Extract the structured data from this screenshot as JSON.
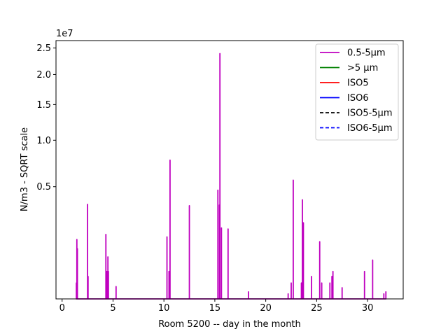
{
  "chart_data": {
    "type": "line",
    "title": "",
    "xlabel": "Room 5200 -- day in the month",
    "ylabel": "N/m3 - SQRT scale",
    "y_scale": "sqrt",
    "y_offset_label": "1e7",
    "xlim": [
      -0.6,
      33.5
    ],
    "ylim": [
      0,
      26500000
    ],
    "x_ticks": [
      0,
      5,
      10,
      15,
      20,
      25,
      30
    ],
    "x_tick_labels": [
      "0",
      "5",
      "10",
      "15",
      "20",
      "25",
      "30"
    ],
    "y_ticks": [
      5000000,
      10000000,
      15000000,
      20000000,
      25000000
    ],
    "y_tick_labels": [
      "0.5",
      "1.0",
      "1.5",
      "2.0",
      "2.5"
    ],
    "legend_position": "top-right",
    "grid": false,
    "series": [
      {
        "name": "0.5-5μm",
        "color": "#bf00bf",
        "dash": "solid",
        "spikes": [
          [
            1.4,
            100000
          ],
          [
            1.45,
            1400000
          ],
          [
            1.5,
            1000000
          ],
          [
            2.5,
            3550000
          ],
          [
            2.55,
            200000
          ],
          [
            4.3,
            1650000
          ],
          [
            4.4,
            300000
          ],
          [
            4.5,
            700000
          ],
          [
            4.55,
            300000
          ],
          [
            5.3,
            60000
          ],
          [
            10.3,
            1530000
          ],
          [
            10.5,
            300000
          ],
          [
            10.6,
            7650000
          ],
          [
            12.5,
            3450000
          ],
          [
            15.3,
            4700000
          ],
          [
            15.45,
            3500000
          ],
          [
            15.5,
            23900000
          ],
          [
            15.65,
            2000000
          ],
          [
            16.3,
            1940000
          ],
          [
            18.3,
            20000
          ],
          [
            22.2,
            10000
          ],
          [
            22.5,
            100000
          ],
          [
            22.7,
            5600000
          ],
          [
            23.5,
            100000
          ],
          [
            23.6,
            3900000
          ],
          [
            23.7,
            2300000
          ],
          [
            24.5,
            200000
          ],
          [
            25.3,
            1300000
          ],
          [
            25.5,
            100000
          ],
          [
            26.3,
            100000
          ],
          [
            26.5,
            200000
          ],
          [
            26.6,
            300000
          ],
          [
            27.5,
            50000
          ],
          [
            29.7,
            300000
          ],
          [
            30.5,
            600000
          ],
          [
            31.6,
            10000
          ],
          [
            31.8,
            20000
          ]
        ]
      },
      {
        "name": ">5 μm",
        "color": "#008000",
        "dash": "solid",
        "spikes": []
      },
      {
        "name": "ISO5",
        "color": "#ff0000",
        "dash": "solid",
        "spikes": []
      },
      {
        "name": "ISO6",
        "color": "#0000ff",
        "dash": "solid",
        "spikes": []
      },
      {
        "name": "ISO5-5μm",
        "color": "#000000",
        "dash": "dashed",
        "spikes": []
      },
      {
        "name": "ISO6-5μm",
        "color": "#0000ff",
        "dash": "dashed",
        "spikes": []
      }
    ]
  }
}
